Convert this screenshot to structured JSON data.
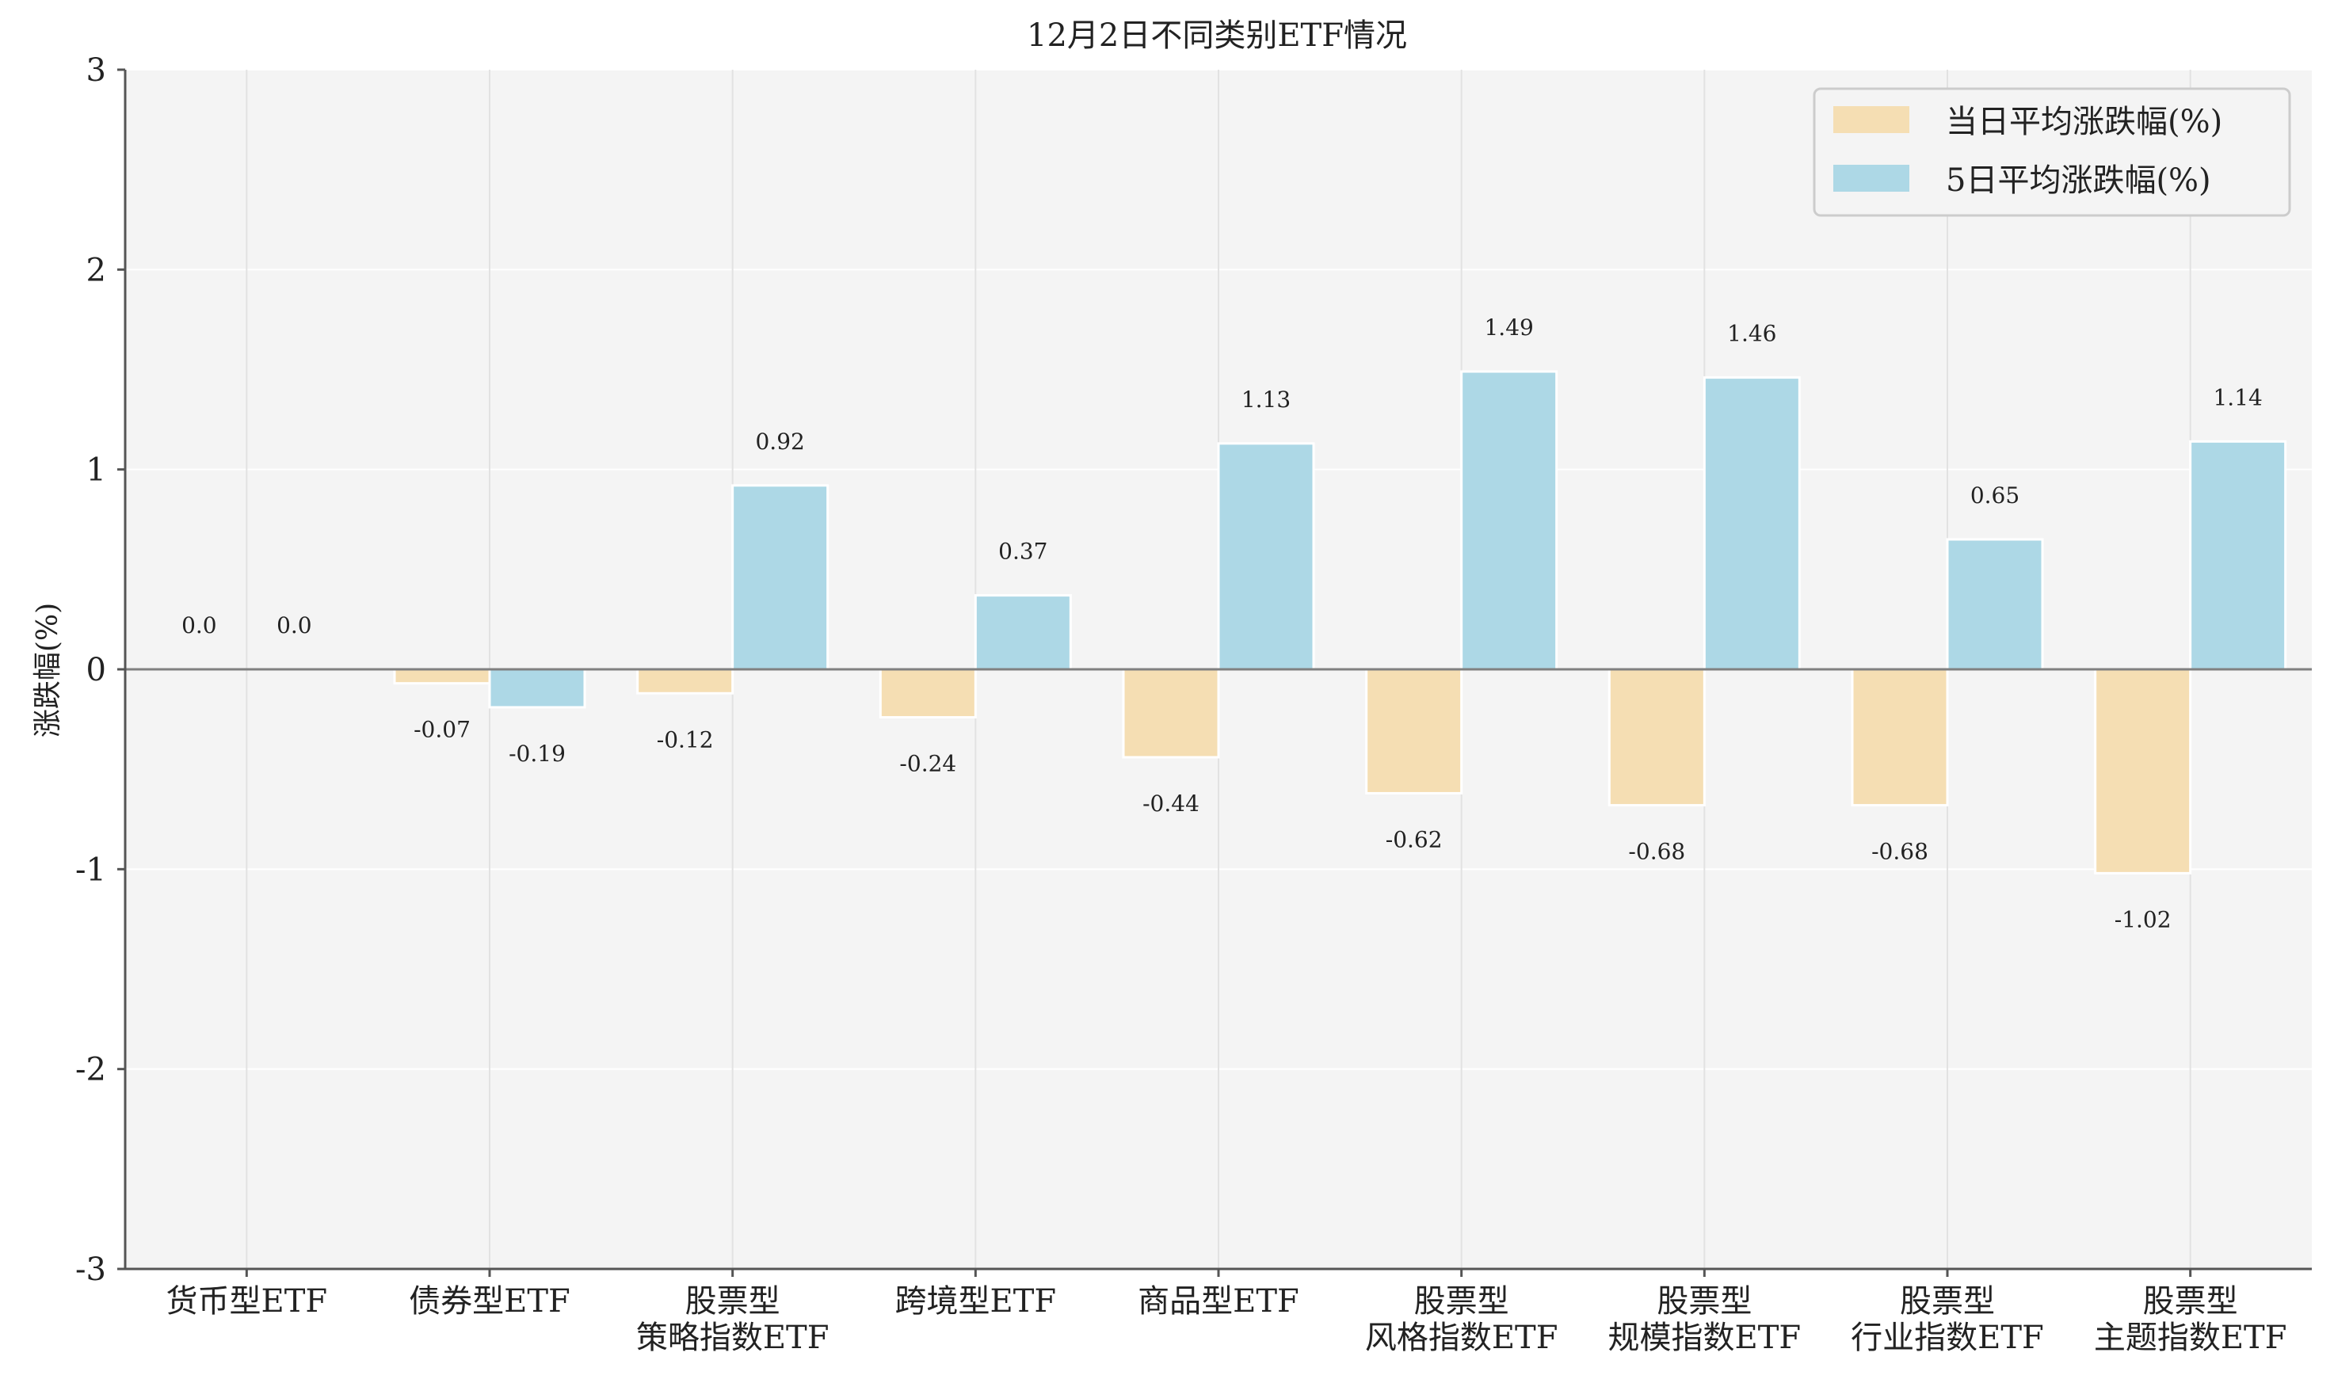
{
  "chart_data": {
    "type": "bar",
    "title": "12月2日不同类别ETF情况",
    "ylabel": "涨跌幅(%)",
    "xlabel": "",
    "ylim": [
      -3,
      3
    ],
    "yticks": [
      "-3",
      "-2",
      "-1",
      "0",
      "1",
      "2",
      "3"
    ],
    "grid": true,
    "legend_position": "top-right",
    "categories": [
      [
        "货币型ETF"
      ],
      [
        "债券型ETF"
      ],
      [
        "股票型",
        "策略指数ETF"
      ],
      [
        "跨境型ETF"
      ],
      [
        "商品型ETF"
      ],
      [
        "股票型",
        "风格指数ETF"
      ],
      [
        "股票型",
        "规模指数ETF"
      ],
      [
        "股票型",
        "行业指数ETF"
      ],
      [
        "股票型",
        "主题指数ETF"
      ]
    ],
    "series": [
      {
        "name": "当日平均涨跌幅(%)",
        "color": "#f5deb3",
        "values": [
          0.0,
          -0.07,
          -0.12,
          -0.24,
          -0.44,
          -0.62,
          -0.68,
          -0.68,
          -1.02
        ],
        "labels": [
          "0.0",
          "-0.07",
          "-0.12",
          "-0.24",
          "-0.44",
          "-0.62",
          "-0.68",
          "-0.68",
          "-1.02"
        ]
      },
      {
        "name": "5日平均涨跌幅(%)",
        "color": "#add8e6",
        "values": [
          0.0,
          -0.19,
          0.92,
          0.37,
          1.13,
          1.49,
          1.46,
          0.65,
          1.14
        ],
        "labels": [
          "0.0",
          "-0.19",
          "0.92",
          "0.37",
          "1.13",
          "1.49",
          "1.46",
          "0.65",
          "1.14"
        ]
      }
    ]
  },
  "colors": {
    "plot_background": "#f4f4f4",
    "grid": "#ffffff",
    "axis": "#555555",
    "zero_line": "#808080",
    "text": "#222222"
  }
}
